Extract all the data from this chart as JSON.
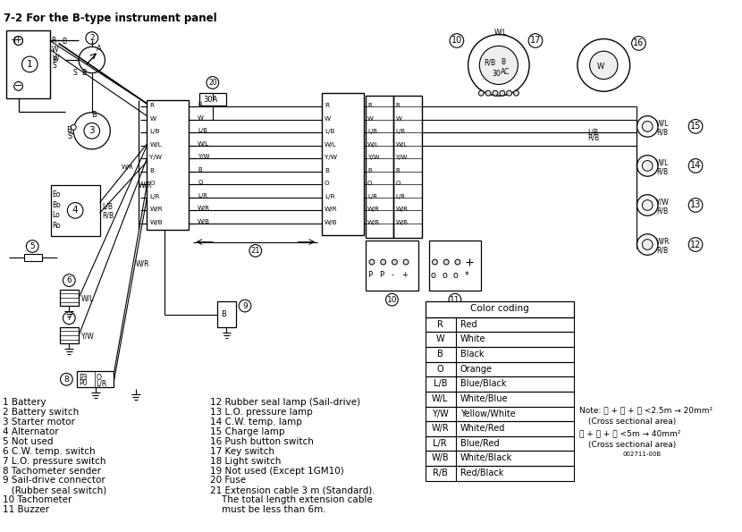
{
  "title": "7-2 For the B-type instrument panel",
  "bg_color": "#ffffff",
  "color_table": {
    "header": "Color coding",
    "rows": [
      [
        "R",
        "Red"
      ],
      [
        "W",
        "White"
      ],
      [
        "B",
        "Black"
      ],
      [
        "O",
        "Orange"
      ],
      [
        "L/B",
        "Blue/Black"
      ],
      [
        "W/L",
        "White/Blue"
      ],
      [
        "Y/W",
        "Yellow/White"
      ],
      [
        "W/R",
        "White/Red"
      ],
      [
        "L/R",
        "Blue/Red"
      ],
      [
        "W/B",
        "White/Black"
      ],
      [
        "R/B",
        "Red/Black"
      ]
    ]
  },
  "legend_col1": [
    "1 Battery",
    "2 Battery switch",
    "3 Starter motor",
    "4 Alternator",
    "5 Not used",
    "6 C.W. temp. switch",
    "7 L.O. pressure switch",
    "8 Tachometer sender",
    "9 Sail-drive connector",
    "   (Rubber seal switch)",
    "10 Tachometer",
    "11 Buzzer"
  ],
  "legend_col2": [
    "12 Rubber seal lamp (Sail-drive)",
    "13 L.O. pressure lamp",
    "14 C.W. temp. lamp",
    "15 Charge lamp",
    "16 Push button switch",
    "17 Key switch",
    "18 Light switch",
    "19 Not used (Except 1GM10)",
    "20 Fuse",
    "21 Extension cable 3 m (Standard).",
    "    The total length extension cable",
    "    must be less than 6m."
  ],
  "note_line1": "Note: Ⓐ + Ⓑ + Ⓒ <2.5m → 20mm²",
  "note_line2": "(Cross sectional area)",
  "note_line3": "Ⓐ + Ⓑ + Ⓒ <5m → 40mm²",
  "note_line4": "(Cross sectional area)",
  "note_small": "002711-00B",
  "wire_labels": [
    "R",
    "W",
    "L/B",
    "W/L",
    "Y/W",
    "B",
    "O",
    "L/R",
    "W/R",
    "W/B"
  ],
  "right_lamp_labels": [
    [
      "W/L",
      "R/B"
    ],
    [
      "W/L",
      "R/B"
    ],
    [
      "Y/W",
      "R/B"
    ],
    [
      "W/R",
      "R/B"
    ]
  ],
  "right_lamp_nums": [
    "15",
    "14",
    "13",
    "12"
  ]
}
